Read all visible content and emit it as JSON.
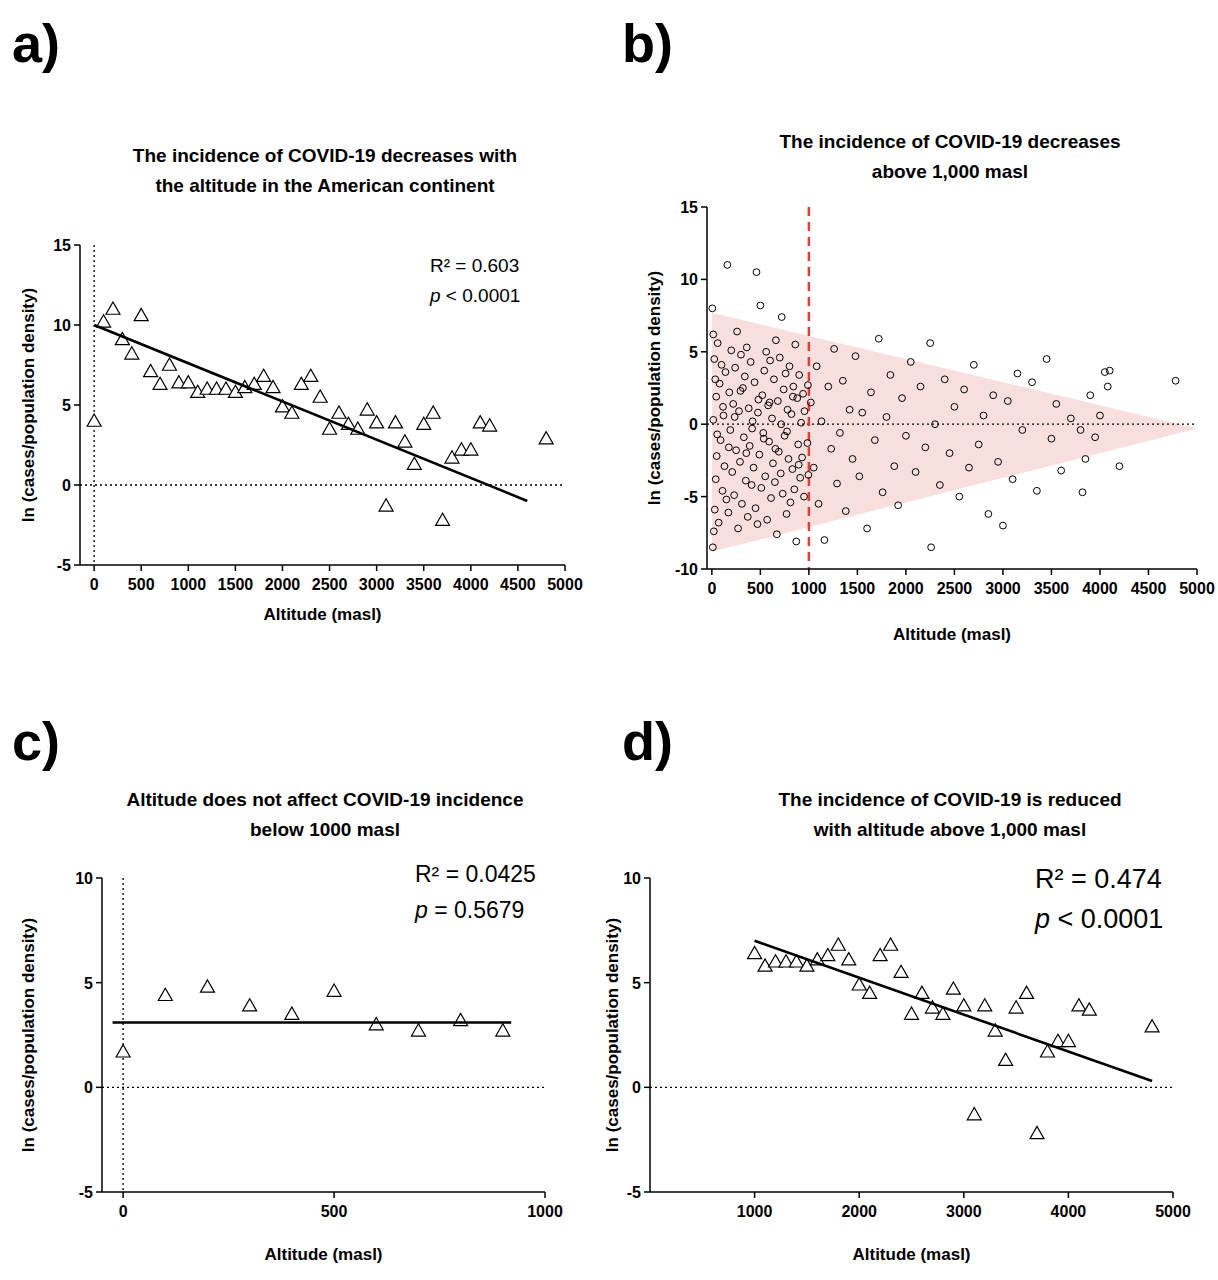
{
  "chart_data": [
    {
      "type": "scatter",
      "label": "a)",
      "title": [
        "The incidence of COVID-19 decreases with",
        "the altitude in the American continent"
      ],
      "x_label": "Altitude (masl)",
      "y_label": "ln (cases/population density)",
      "annotations": [
        "R² = 0.603",
        "p < 0.0001"
      ],
      "xlim": [
        -150,
        5000
      ],
      "xticks": [
        0,
        500,
        1000,
        1500,
        2000,
        2500,
        3000,
        3500,
        4000,
        4500,
        5000
      ],
      "ylim": [
        -5,
        15
      ],
      "yticks": [
        -5,
        0,
        5,
        10,
        15
      ],
      "hlines": [
        {
          "value": 0,
          "line_style": "dotted",
          "color": "#000000"
        }
      ],
      "vlines": [
        {
          "value": 0,
          "line_style": "dotted",
          "color": "#000000"
        }
      ],
      "series": [
        {
          "type": "scatter",
          "marker": "triangle",
          "color": "#000000",
          "x": [
            0,
            100,
            200,
            300,
            400,
            500,
            600,
            700,
            800,
            900,
            1000,
            1100,
            1200,
            1300,
            1400,
            1500,
            1600,
            1700,
            1800,
            1900,
            2000,
            2100,
            2200,
            2300,
            2400,
            2500,
            2600,
            2700,
            2800,
            2900,
            3000,
            3100,
            3200,
            3300,
            3400,
            3500,
            3600,
            3700,
            3800,
            3900,
            4000,
            4100,
            4200,
            4800
          ],
          "values": [
            4,
            10.2,
            11,
            9.1,
            8.2,
            10.6,
            7.1,
            6.3,
            7.5,
            6.4,
            6.4,
            5.8,
            6,
            6,
            6,
            5.8,
            6.1,
            6.3,
            6.8,
            6.1,
            4.9,
            4.5,
            6.3,
            6.8,
            5.5,
            3.5,
            4.5,
            3.8,
            3.5,
            4.7,
            3.9,
            -1.3,
            3.9,
            2.7,
            1.3,
            3.8,
            4.5,
            -2.2,
            1.7,
            2.2,
            2.2,
            3.9,
            3.7,
            2.9
          ]
        },
        {
          "type": "line",
          "line_style": "solid",
          "color": "#000000",
          "x": [
            0,
            4600
          ],
          "values": [
            10,
            -1
          ]
        }
      ]
    },
    {
      "type": "scatter",
      "label": "b)",
      "title": [
        "The incidence of COVID-19 decreases",
        "above 1,000 masl"
      ],
      "x_label": "Altitude (masl)",
      "y_label": "ln (cases/population density)",
      "annotations": [],
      "xlim": [
        -50,
        5000
      ],
      "xticks": [
        0,
        500,
        1000,
        1500,
        2000,
        2500,
        3000,
        3500,
        4000,
        4500,
        5000
      ],
      "ylim": [
        -10,
        15
      ],
      "yticks": [
        -10,
        -5,
        0,
        5,
        10,
        15
      ],
      "band": {
        "x": [
          0,
          5000
        ],
        "upper": [
          7.7,
          -0.3
        ],
        "lower": [
          -8.8,
          -0.3
        ],
        "color": "#f9dede"
      },
      "hlines": [
        {
          "value": 0,
          "line_style": "dotted",
          "color": "#000000"
        }
      ],
      "vlines": [
        {
          "value": 1000,
          "line_style": "dashed",
          "color": "#e0403a"
        }
      ],
      "series": [
        {
          "type": "scatter",
          "marker": "circle",
          "color": "#000000",
          "x": [
            5,
            10,
            15,
            20,
            25,
            30,
            35,
            40,
            45,
            50,
            60,
            70,
            80,
            90,
            100,
            110,
            120,
            130,
            140,
            150,
            160,
            170,
            180,
            190,
            200,
            210,
            220,
            230,
            240,
            250,
            260,
            270,
            280,
            290,
            300,
            310,
            320,
            330,
            340,
            350,
            360,
            370,
            380,
            390,
            400,
            410,
            420,
            430,
            440,
            450,
            460,
            470,
            480,
            490,
            500,
            510,
            520,
            530,
            540,
            550,
            560,
            570,
            580,
            590,
            600,
            610,
            620,
            630,
            640,
            650,
            660,
            670,
            680,
            690,
            700,
            710,
            720,
            730,
            740,
            750,
            760,
            770,
            780,
            790,
            800,
            810,
            820,
            830,
            840,
            850,
            860,
            870,
            880,
            890,
            900,
            910,
            920,
            930,
            940,
            950,
            15,
            55,
            115,
            175,
            235,
            295,
            355,
            415,
            475,
            535,
            595,
            655,
            715,
            775,
            835,
            895,
            955,
            985,
            990,
            995,
            1020,
            1050,
            1080,
            1100,
            1130,
            1160,
            1200,
            1230,
            1260,
            1290,
            1320,
            1350,
            1380,
            1420,
            1450,
            1480,
            1520,
            1550,
            1600,
            1640,
            1680,
            1720,
            1760,
            1800,
            1840,
            1880,
            1920,
            1960,
            2000,
            2050,
            2100,
            2150,
            2200,
            2250,
            2260,
            2300,
            2350,
            2400,
            2450,
            2500,
            2550,
            2600,
            2650,
            2700,
            2750,
            2800,
            2850,
            2900,
            2950,
            3000,
            3050,
            3100,
            3150,
            3200,
            3300,
            3350,
            3450,
            3500,
            3550,
            3600,
            3700,
            3800,
            3820,
            3850,
            3900,
            3950,
            4000,
            4050,
            4080,
            4100,
            4200,
            4780
          ],
          "values": [
            8.0,
            -8.5,
            6.2,
            -7.4,
            4.5,
            -5.9,
            3.1,
            -3.8,
            1.9,
            -2.2,
            5.6,
            -6.8,
            2.8,
            -1.1,
            4.1,
            -4.6,
            0.6,
            -2.9,
            3.6,
            -5.2,
            11.0,
            -6.1,
            2.2,
            -0.4,
            5.1,
            -3.3,
            1.4,
            -4.9,
            3.9,
            -1.8,
            6.4,
            -7.2,
            0.9,
            -2.6,
            4.8,
            -5.5,
            2.5,
            -0.9,
            3.3,
            -3.9,
            5.3,
            -6.4,
            1.1,
            -1.5,
            4.3,
            -4.2,
            0.2,
            -3.0,
            2.9,
            -5.8,
            10.5,
            -6.9,
            1.7,
            -2.1,
            8.2,
            -4.4,
            2.0,
            -0.6,
            3.7,
            -3.6,
            5.0,
            -6.6,
            1.3,
            -1.2,
            4.4,
            -5.1,
            0.4,
            -2.7,
            3.1,
            -4.0,
            5.8,
            -7.6,
            1.6,
            -1.9,
            4.6,
            -3.4,
            7.4,
            -4.8,
            2.4,
            -0.8,
            3.5,
            -6.2,
            1.0,
            -2.4,
            4.0,
            -5.4,
            0.7,
            -3.1,
            2.6,
            -4.5,
            5.5,
            -8.1,
            1.8,
            -1.4,
            3.4,
            -3.7,
            0.1,
            -2.3,
            2.1,
            -5.0,
            0.3,
            -0.7,
            1.2,
            -1.6,
            0.5,
            2.3,
            -2.0,
            -0.3,
            0.8,
            -1.0,
            1.5,
            -1.7,
            0.0,
            -0.5,
            1.9,
            -2.8,
            0.9,
            -1.3,
            2.7,
            -3.5,
            1.5,
            -3.0,
            4.0,
            -5.5,
            0.2,
            -8.0,
            2.6,
            -1.7,
            5.2,
            -4.1,
            -0.6,
            3.0,
            -6.0,
            1.0,
            -2.4,
            4.7,
            -3.6,
            0.8,
            -7.2,
            2.2,
            -1.1,
            5.9,
            -4.7,
            0.5,
            3.4,
            -2.9,
            -5.6,
            1.8,
            -0.8,
            4.3,
            -3.3,
            2.6,
            -1.6,
            5.6,
            -8.5,
            0.0,
            -4.2,
            3.1,
            -2.0,
            1.2,
            -5.0,
            2.4,
            -3.0,
            4.1,
            -1.4,
            0.6,
            -6.2,
            2.0,
            -2.6,
            -7.0,
            1.6,
            -3.8,
            3.5,
            -0.4,
            2.9,
            -4.6,
            4.5,
            -1.0,
            1.4,
            -3.2,
            0.4,
            -0.4,
            -4.7,
            -2.4,
            2.0,
            -0.9,
            0.6,
            3.6,
            2.6,
            3.7,
            -2.9,
            3.0
          ]
        }
      ]
    },
    {
      "type": "scatter",
      "label": "c)",
      "title": [
        "Altitude does not affect COVID-19 incidence",
        "below 1000 masl"
      ],
      "x_label": "Altitude (masl)",
      "y_label": "ln (cases/population density)",
      "annotations": [
        "R² = 0.0425",
        "p = 0.5679"
      ],
      "xlim": [
        -50,
        1000
      ],
      "xticks": [
        0,
        500,
        1000
      ],
      "ylim": [
        -5,
        10
      ],
      "yticks": [
        -5,
        0,
        5,
        10
      ],
      "hlines": [
        {
          "value": 0,
          "line_style": "dotted",
          "color": "#000000"
        }
      ],
      "vlines": [
        {
          "value": 0,
          "line_style": "dotted",
          "color": "#000000"
        }
      ],
      "series": [
        {
          "type": "scatter",
          "marker": "triangle",
          "color": "#000000",
          "x": [
            0,
            100,
            200,
            300,
            400,
            500,
            600,
            700,
            800,
            900
          ],
          "values": [
            1.7,
            4.4,
            4.8,
            3.9,
            3.5,
            4.6,
            3.0,
            2.7,
            3.2,
            2.7
          ]
        },
        {
          "type": "line",
          "line_style": "solid",
          "color": "#000000",
          "x": [
            -25,
            920
          ],
          "values": [
            3.1,
            3.1
          ]
        }
      ]
    },
    {
      "type": "scatter",
      "label": "d)",
      "title": [
        "The incidence of COVID-19 is reduced",
        "with altitude above 1,000 masl"
      ],
      "x_label": "Altitude (masl)",
      "y_label": "ln (cases/population density)",
      "annotations": [
        "R² = 0.474",
        "p < 0.0001"
      ],
      "xlim": [
        0,
        5000
      ],
      "xticks": [
        1000,
        2000,
        3000,
        4000,
        5000
      ],
      "ylim": [
        -5,
        10
      ],
      "yticks": [
        -5,
        0,
        5,
        10
      ],
      "hlines": [
        {
          "value": 0,
          "line_style": "dotted",
          "color": "#000000"
        }
      ],
      "vlines": [],
      "series": [
        {
          "type": "scatter",
          "marker": "triangle",
          "color": "#000000",
          "x": [
            1000,
            1100,
            1200,
            1300,
            1400,
            1500,
            1600,
            1700,
            1800,
            1900,
            2000,
            2100,
            2200,
            2300,
            2400,
            2500,
            2600,
            2700,
            2800,
            2900,
            3000,
            3100,
            3200,
            3300,
            3400,
            3500,
            3600,
            3700,
            3800,
            3900,
            4000,
            4100,
            4200,
            4800
          ],
          "values": [
            6.4,
            5.8,
            6,
            6,
            6,
            5.8,
            6.1,
            6.3,
            6.8,
            6.1,
            4.9,
            4.5,
            6.3,
            6.8,
            5.5,
            3.5,
            4.5,
            3.8,
            3.5,
            4.7,
            3.9,
            -1.3,
            3.9,
            2.7,
            1.3,
            3.8,
            4.5,
            -2.2,
            1.7,
            2.2,
            2.2,
            3.9,
            3.7,
            2.9
          ]
        },
        {
          "type": "line",
          "line_style": "solid",
          "color": "#000000",
          "x": [
            1000,
            4800
          ],
          "values": [
            7.0,
            0.3
          ]
        }
      ]
    }
  ]
}
